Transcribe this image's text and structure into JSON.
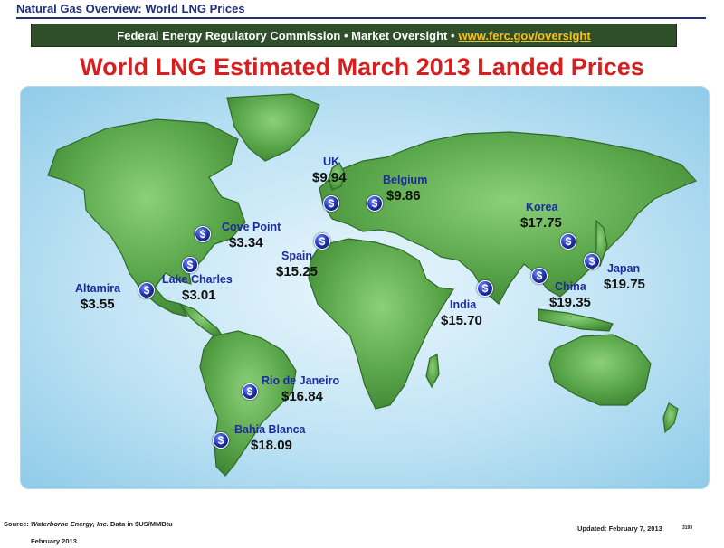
{
  "header": {
    "title": "Natural Gas Overview: World LNG Prices"
  },
  "banner": {
    "text": "Federal Energy Regulatory Commission • Market Oversight •",
    "link": "www.ferc.gov/oversight"
  },
  "title": "World LNG Estimated March 2013 Landed Prices",
  "map": {
    "marker_icon": "dollar-icon",
    "marker_glyph": "$",
    "locations": [
      {
        "name": "UK",
        "price": "$9.94"
      },
      {
        "name": "Belgium",
        "price": "$9.86"
      },
      {
        "name": "Cove Point",
        "price": "$3.34"
      },
      {
        "name": "Spain",
        "price": "$15.25"
      },
      {
        "name": "Lake Charles",
        "price": "$3.01"
      },
      {
        "name": "Altamira",
        "price": "$3.55"
      },
      {
        "name": "Korea",
        "price": "$17.75"
      },
      {
        "name": "Japan",
        "price": "$19.75"
      },
      {
        "name": "China",
        "price": "$19.35"
      },
      {
        "name": "India",
        "price": "$15.70"
      },
      {
        "name": "Rio de Janeiro",
        "price": "$16.84"
      },
      {
        "name": "Bahia Blanca",
        "price": "$18.09"
      }
    ]
  },
  "colors": {
    "header": "#1f2f7a",
    "banner_bg": "#2f4f2a",
    "link": "#f6c21a",
    "title": "#d81e1e",
    "land": "#5aa64a",
    "ocean": "#bfe3f4"
  },
  "footer": {
    "source_label": "Source:",
    "source_name": "Waterborne Energy, Inc.",
    "data_note": "Data in $US/MMBtu",
    "date": "February 2013",
    "updated": "Updated:  February 7, 2013",
    "code": "3199"
  }
}
